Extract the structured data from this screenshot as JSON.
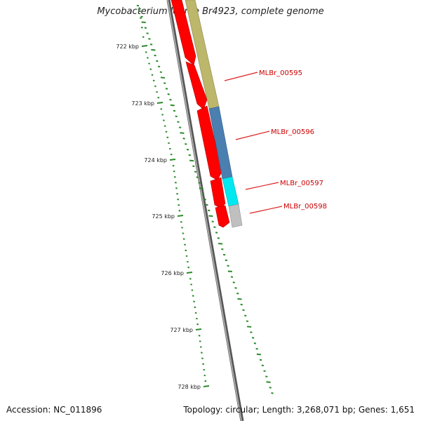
{
  "title": "Mycobacterium leprae Br4923, complete genome",
  "accession": "Accession: NC_011896",
  "summary": "Topology: circular; Length: 3,268,071 bp; Genes: 1,651",
  "colors": {
    "backbone": "#808080",
    "tick": "#2a8a2a",
    "tick_label": "#222222",
    "label_line": "#dd2222",
    "label_text": "#cc0000",
    "cds_red": "#ff0000",
    "olive": "#bdb76b",
    "steelblue": "#4a7fb0",
    "cyan": "#00e8f0",
    "grey": "#c0c0c0"
  },
  "ticks": [
    "722 kbp",
    "723 kbp",
    "724 kbp",
    "725 kbp",
    "726 kbp",
    "727 kbp",
    "728 kbp"
  ],
  "gene_labels": [
    "MLBr_00595",
    "MLBr_00596",
    "MLBr_00597",
    "MLBr_00598"
  ]
}
